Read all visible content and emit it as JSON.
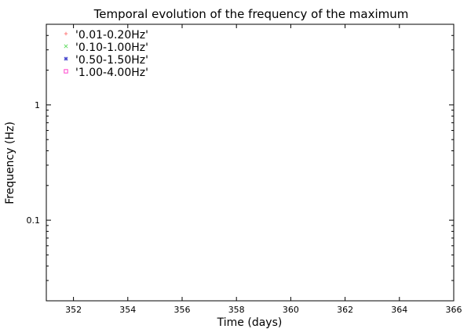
{
  "chart_data": {
    "type": "scatter",
    "title": "Temporal evolution of the frequency of the maximum",
    "xlabel": "Time (days)",
    "ylabel": "Frequency (Hz)",
    "xlim": [
      351,
      366
    ],
    "ylim": [
      0.02,
      5
    ],
    "yscale": "log",
    "x_ticks": [
      "352",
      "354",
      "356",
      "358",
      "360",
      "362",
      "364",
      "366"
    ],
    "y_ticks": [
      "0.1",
      "1"
    ],
    "grid": false,
    "legend_position": "top-left",
    "series": [
      {
        "name": "'0.01-0.20Hz'",
        "color": "#ff7f7f",
        "marker": "plus",
        "points": []
      },
      {
        "name": "'0.10-1.00Hz'",
        "color": "#66dd66",
        "marker": "cross",
        "points": []
      },
      {
        "name": "'0.50-1.50Hz'",
        "color": "#4444cc",
        "marker": "star",
        "points": []
      },
      {
        "name": "'1.00-4.00Hz'",
        "color": "#ff44cc",
        "marker": "square",
        "points": []
      }
    ]
  }
}
